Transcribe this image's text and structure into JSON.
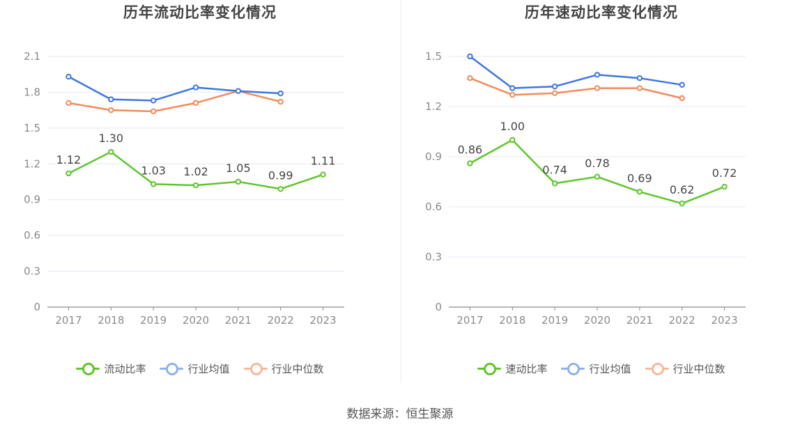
{
  "source": "数据来源：恒生聚源",
  "chart_data": [
    {
      "type": "line",
      "title": "历年流动比率变化情况",
      "categories": [
        "2017",
        "2018",
        "2019",
        "2020",
        "2021",
        "2022",
        "2023"
      ],
      "y_ticks": [
        "0",
        "0.3",
        "0.6",
        "0.9",
        "1.2",
        "1.5",
        "1.8",
        "2.1"
      ],
      "ylim": [
        0,
        2.1
      ],
      "series": [
        {
          "name": "流动比率",
          "color": "#5ec52b",
          "labeled": true,
          "values": [
            1.12,
            1.3,
            1.03,
            1.02,
            1.05,
            0.99,
            1.11
          ],
          "labels": [
            "1.12",
            "1.30",
            "1.03",
            "1.02",
            "1.05",
            "0.99",
            "1.11"
          ]
        },
        {
          "name": "行业均值",
          "color": "#3d75e2",
          "labeled": false,
          "values": [
            1.93,
            1.74,
            1.73,
            1.84,
            1.81,
            1.79,
            null
          ]
        },
        {
          "name": "行业中位数",
          "color": "#f28a5a",
          "labeled": false,
          "values": [
            1.71,
            1.65,
            1.64,
            1.71,
            1.81,
            1.72,
            null
          ]
        }
      ]
    },
    {
      "type": "line",
      "title": "历年速动比率变化情况",
      "categories": [
        "2017",
        "2018",
        "2019",
        "2020",
        "2021",
        "2022",
        "2023"
      ],
      "y_ticks": [
        "0",
        "0.3",
        "0.6",
        "0.9",
        "1.2",
        "1.5"
      ],
      "ylim": [
        0,
        1.5
      ],
      "series": [
        {
          "name": "速动比率",
          "color": "#5ec52b",
          "labeled": true,
          "values": [
            0.86,
            1.0,
            0.74,
            0.78,
            0.69,
            0.62,
            0.72
          ],
          "labels": [
            "0.86",
            "1.00",
            "0.74",
            "0.78",
            "0.69",
            "0.62",
            "0.72"
          ]
        },
        {
          "name": "行业均值",
          "color": "#3d75e2",
          "labeled": false,
          "values": [
            1.5,
            1.31,
            1.32,
            1.39,
            1.37,
            1.33,
            null
          ]
        },
        {
          "name": "行业中位数",
          "color": "#f28a5a",
          "labeled": false,
          "values": [
            1.37,
            1.27,
            1.28,
            1.31,
            1.31,
            1.25,
            null
          ]
        }
      ]
    }
  ],
  "legend_colors": {
    "0": {
      "line": "#5ec52b",
      "dot": "#5ec52b"
    },
    "1": {
      "line": "#8fb0ee",
      "dot": "#8fb0ee"
    },
    "2": {
      "line": "#f6b89b",
      "dot": "#f6b89b"
    }
  }
}
